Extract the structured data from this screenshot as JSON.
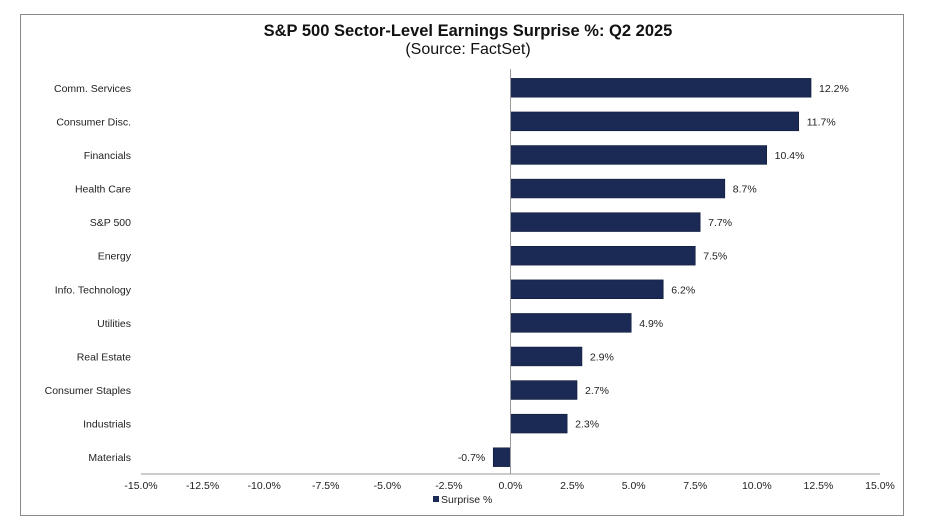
{
  "chart_data": {
    "type": "bar",
    "orientation": "horizontal",
    "title": "S&P 500 Sector-Level Earnings Surprise %: Q2 2025",
    "subtitle": "(Source: FactSet)",
    "xlabel": "",
    "ylabel": "",
    "xlim": [
      -15.0,
      15.0
    ],
    "x_ticks": [
      -15.0,
      -12.5,
      -10.0,
      -7.5,
      -5.0,
      -2.5,
      0.0,
      2.5,
      5.0,
      7.5,
      10.0,
      12.5,
      15.0
    ],
    "x_tick_labels": [
      "-15.0%",
      "-12.5%",
      "-10.0%",
      "-7.5%",
      "-5.0%",
      "-2.5%",
      "0.0%",
      "2.5%",
      "5.0%",
      "7.5%",
      "10.0%",
      "12.5%",
      "15.0%"
    ],
    "grid": false,
    "legend_position": "bottom",
    "categories": [
      "Comm. Services",
      "Consumer Disc.",
      "Financials",
      "Health Care",
      "S&P 500",
      "Energy",
      "Info. Technology",
      "Utilities",
      "Real Estate",
      "Consumer Staples",
      "Industrials",
      "Materials"
    ],
    "series": [
      {
        "name": "Surprise %",
        "color": "#1b2a55",
        "values": [
          12.2,
          11.7,
          10.4,
          8.7,
          7.7,
          7.5,
          6.2,
          4.9,
          2.9,
          2.7,
          2.3,
          -0.7
        ],
        "data_labels": [
          "12.2%",
          "11.7%",
          "10.4%",
          "8.7%",
          "7.7%",
          "7.5%",
          "6.2%",
          "4.9%",
          "2.9%",
          "2.7%",
          "2.3%",
          "-0.7%"
        ]
      }
    ]
  }
}
